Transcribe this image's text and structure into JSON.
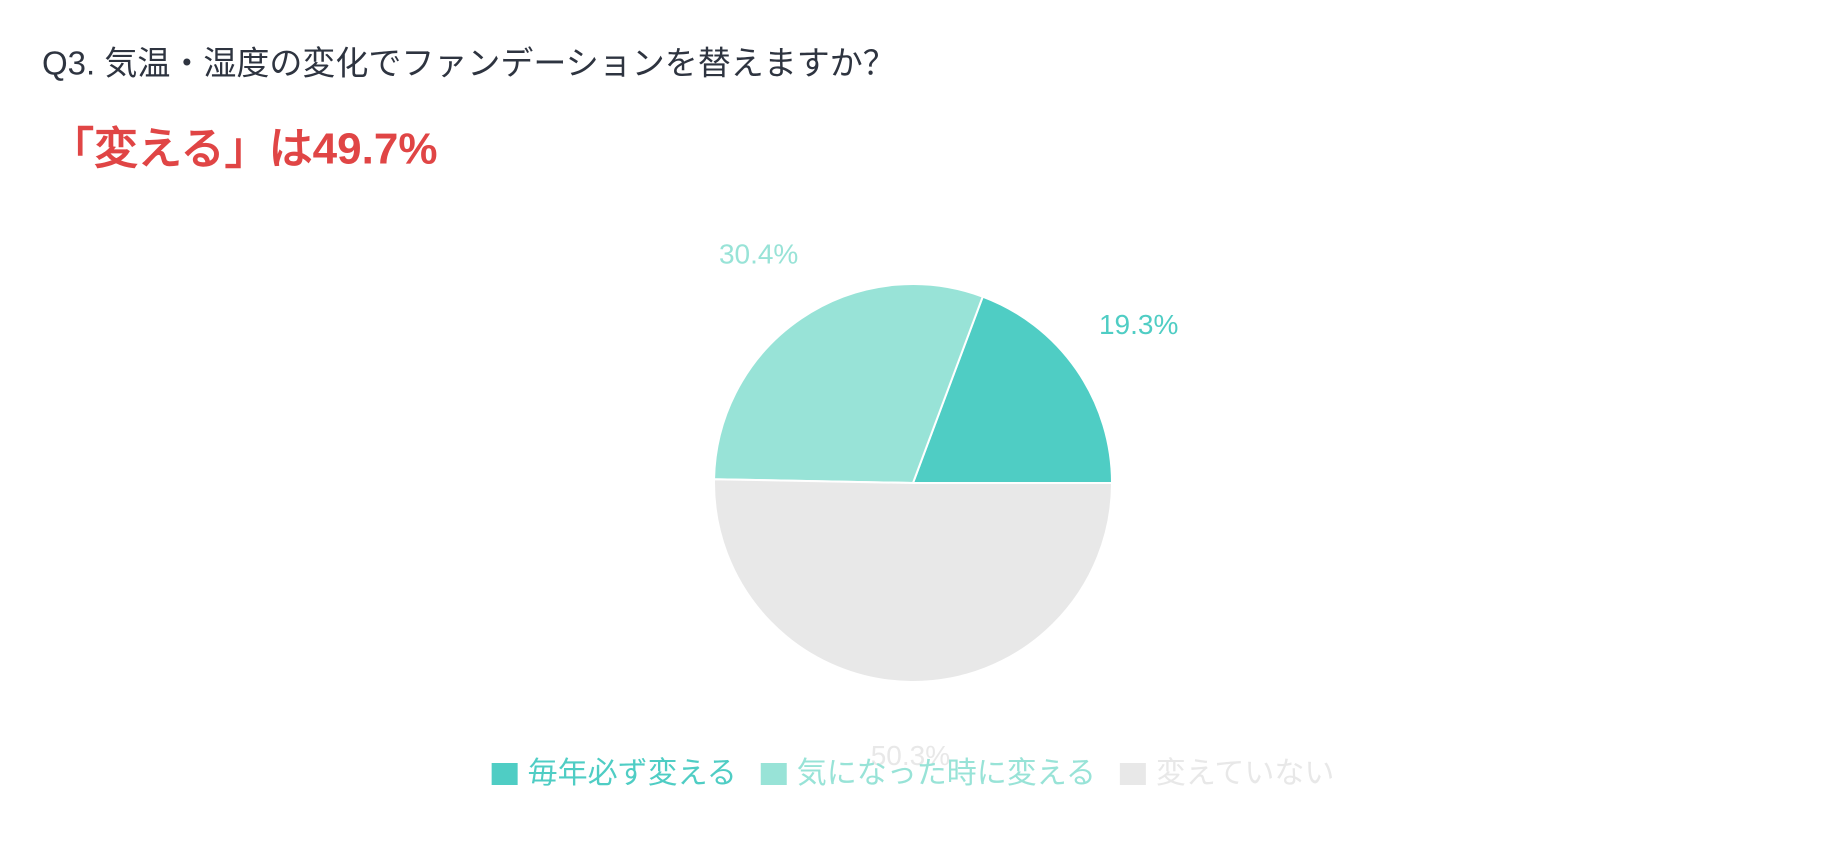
{
  "chart_data": {
    "type": "pie",
    "title": "Q3. 気温・湿度の変化でファンデーションを替えますか？",
    "subtitle": "「変える」は49.7%",
    "categories": [
      "毎年必ず変える",
      "気になった時に変える",
      "変えていない"
    ],
    "values": [
      19.3,
      30.4,
      50.3
    ],
    "value_labels": [
      "19.3%",
      "30.4%",
      "50.3%"
    ],
    "colors": [
      "#4fcdc4",
      "#98e3d7",
      "#e8e8e8"
    ],
    "legend": "bottom"
  }
}
